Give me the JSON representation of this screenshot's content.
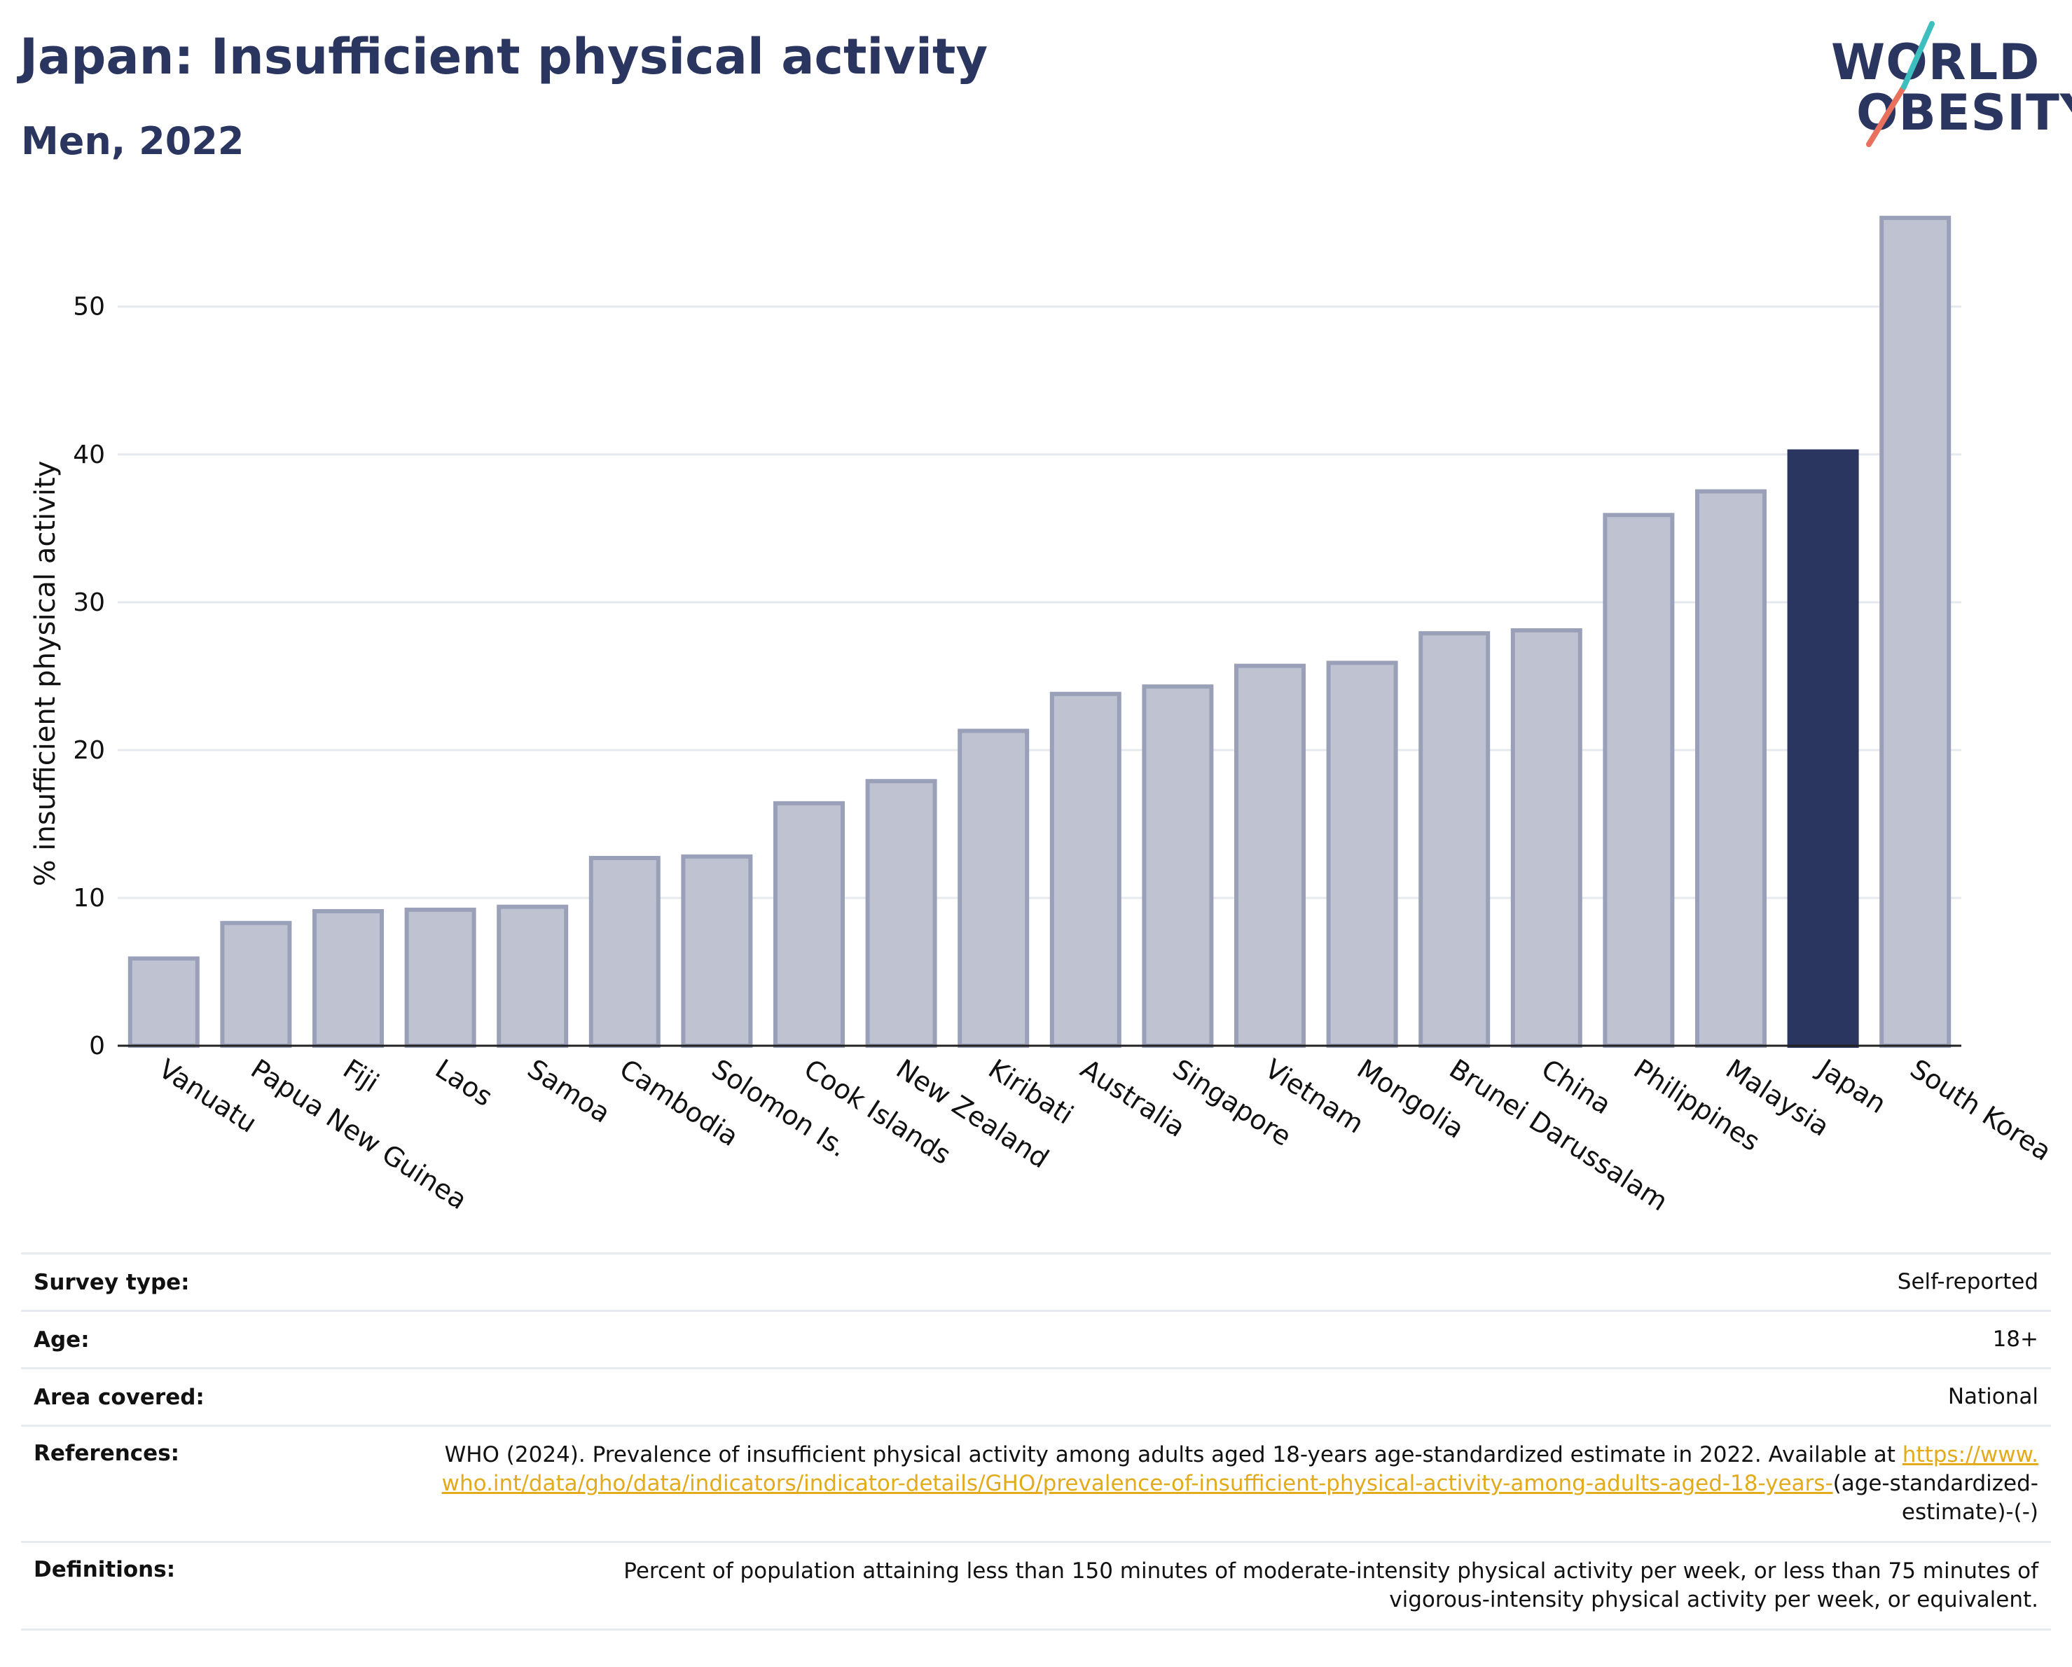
{
  "header": {
    "title": "Japan: Insufficient physical activity",
    "subtitle": "Men, 2022",
    "logo_line1": "WORLD",
    "logo_line2": "OBESITY"
  },
  "colors": {
    "navy": "#2a3560",
    "bar_fill": "#bfc2d0",
    "bar_border": "#9aa0b8",
    "highlight": "#2a3560",
    "gridline": "#e6e9ee",
    "logo_teal": "#3ebfbf",
    "logo_coral": "#e8705d",
    "link": "#e3ab1b"
  },
  "chart_data": {
    "type": "bar",
    "ylabel": "% insufficient physical activity",
    "xlabel": "",
    "ylim": [
      0,
      57
    ],
    "yticks": [
      0,
      10,
      20,
      30,
      40,
      50
    ],
    "grid": true,
    "highlight": "Japan",
    "categories": [
      "Vanuatu",
      "Papua New Guinea",
      "Fiji",
      "Laos",
      "Samoa",
      "Cambodia",
      "Solomon Is.",
      "Cook Islands",
      "New Zealand",
      "Kiribati",
      "Australia",
      "Singapore",
      "Vietnam",
      "Mongolia",
      "Brunei Darussalam",
      "China",
      "Philippines",
      "Malaysia",
      "Japan",
      "South Korea"
    ],
    "values": [
      5.9,
      8.3,
      9.1,
      9.2,
      9.4,
      12.7,
      12.8,
      16.4,
      17.9,
      21.3,
      23.8,
      24.3,
      25.7,
      25.9,
      27.9,
      28.1,
      35.9,
      37.5,
      40.2,
      56.0
    ]
  },
  "meta": {
    "survey_type_label": "Survey type:",
    "survey_type_value": "Self-reported",
    "age_label": "Age:",
    "age_value": "18+",
    "area_label": "Area covered:",
    "area_value": "National",
    "references_label": "References:",
    "references_text": "WHO (2024). Prevalence of insufficient physical activity among adults aged 18-years age-standardized estimate in 2022. Available at",
    "references_link": "https://www.who.int/data/gho/data/indicators/indicator-details/GHO/prevalence-of-insufficient-physical-activity-among-adults-aged-18-years-",
    "references_tail": "(age-standardized-estimate)-(-)",
    "definitions_label": "Definitions:",
    "definitions_value": "Percent of population attaining less than 150 minutes of moderate-intensity physical activity per week, or less than 75 minutes of vigorous-intensity physical activity per week, or equivalent."
  }
}
